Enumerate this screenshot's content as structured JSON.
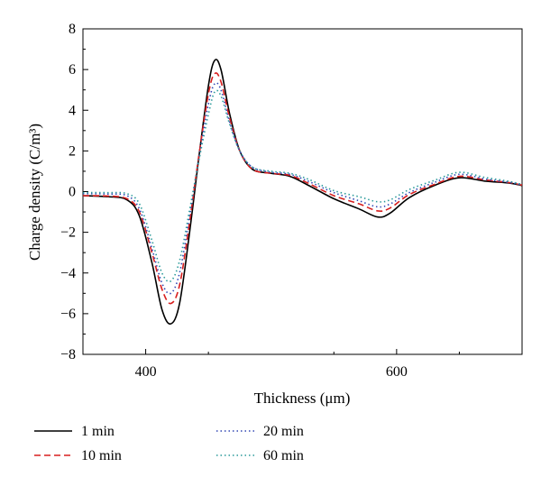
{
  "chart_data": {
    "type": "line",
    "title": "",
    "xlabel": "Thickness (μm)",
    "ylabel": "Charge density (C/m³)",
    "xlim": [
      350,
      700
    ],
    "ylim": [
      -8,
      8
    ],
    "xticks": [
      400,
      600
    ],
    "yticks": [
      -8,
      -6,
      -4,
      -2,
      0,
      2,
      4,
      6,
      8
    ],
    "legend_position": "bottom",
    "grid": false,
    "series": [
      {
        "name": "1 min",
        "color": "#000000",
        "dash": "solid",
        "points": [
          [
            350,
            -0.2
          ],
          [
            370,
            -0.25
          ],
          [
            385,
            -0.4
          ],
          [
            395,
            -1.2
          ],
          [
            405,
            -3.5
          ],
          [
            413,
            -5.8
          ],
          [
            420,
            -6.5
          ],
          [
            427,
            -5.5
          ],
          [
            435,
            -2.0
          ],
          [
            442,
            1.5
          ],
          [
            450,
            5.2
          ],
          [
            455,
            6.45
          ],
          [
            460,
            6.0
          ],
          [
            467,
            3.8
          ],
          [
            475,
            2.0
          ],
          [
            485,
            1.1
          ],
          [
            500,
            0.9
          ],
          [
            515,
            0.75
          ],
          [
            530,
            0.3
          ],
          [
            550,
            -0.35
          ],
          [
            570,
            -0.85
          ],
          [
            585,
            -1.25
          ],
          [
            595,
            -1.05
          ],
          [
            610,
            -0.3
          ],
          [
            630,
            0.3
          ],
          [
            650,
            0.68
          ],
          [
            670,
            0.52
          ],
          [
            690,
            0.42
          ],
          [
            700,
            0.3
          ]
        ]
      },
      {
        "name": "10 min",
        "color": "#d81e1e",
        "dash": "dashed",
        "points": [
          [
            350,
            -0.2
          ],
          [
            370,
            -0.22
          ],
          [
            385,
            -0.35
          ],
          [
            395,
            -1.0
          ],
          [
            405,
            -3.0
          ],
          [
            413,
            -4.8
          ],
          [
            420,
            -5.5
          ],
          [
            427,
            -4.6
          ],
          [
            435,
            -1.5
          ],
          [
            442,
            1.6
          ],
          [
            450,
            4.8
          ],
          [
            455,
            5.8
          ],
          [
            460,
            5.4
          ],
          [
            467,
            3.6
          ],
          [
            475,
            2.0
          ],
          [
            485,
            1.1
          ],
          [
            500,
            0.9
          ],
          [
            515,
            0.8
          ],
          [
            530,
            0.4
          ],
          [
            550,
            -0.2
          ],
          [
            570,
            -0.6
          ],
          [
            585,
            -0.95
          ],
          [
            595,
            -0.8
          ],
          [
            610,
            -0.15
          ],
          [
            630,
            0.35
          ],
          [
            650,
            0.75
          ],
          [
            670,
            0.58
          ],
          [
            690,
            0.44
          ],
          [
            700,
            0.32
          ]
        ]
      },
      {
        "name": "20 min",
        "color": "#3046b4",
        "dash": "dotted",
        "points": [
          [
            350,
            -0.1
          ],
          [
            370,
            -0.12
          ],
          [
            385,
            -0.2
          ],
          [
            395,
            -0.85
          ],
          [
            405,
            -2.8
          ],
          [
            413,
            -4.5
          ],
          [
            420,
            -5.0
          ],
          [
            427,
            -4.0
          ],
          [
            435,
            -1.2
          ],
          [
            442,
            1.5
          ],
          [
            450,
            4.3
          ],
          [
            455,
            5.3
          ],
          [
            460,
            5.0
          ],
          [
            467,
            3.4
          ],
          [
            475,
            2.0
          ],
          [
            485,
            1.2
          ],
          [
            500,
            0.95
          ],
          [
            515,
            0.85
          ],
          [
            530,
            0.5
          ],
          [
            550,
            -0.05
          ],
          [
            570,
            -0.45
          ],
          [
            585,
            -0.75
          ],
          [
            595,
            -0.6
          ],
          [
            610,
            -0.05
          ],
          [
            630,
            0.45
          ],
          [
            650,
            0.85
          ],
          [
            670,
            0.62
          ],
          [
            690,
            0.45
          ],
          [
            700,
            0.32
          ]
        ]
      },
      {
        "name": "60 min",
        "color": "#2a9a9a",
        "dash": "dotted",
        "points": [
          [
            350,
            -0.05
          ],
          [
            370,
            -0.05
          ],
          [
            385,
            -0.1
          ],
          [
            395,
            -0.6
          ],
          [
            405,
            -2.4
          ],
          [
            413,
            -4.0
          ],
          [
            420,
            -4.4
          ],
          [
            427,
            -3.4
          ],
          [
            435,
            -0.9
          ],
          [
            442,
            1.4
          ],
          [
            450,
            3.8
          ],
          [
            455,
            4.9
          ],
          [
            460,
            4.7
          ],
          [
            467,
            3.3
          ],
          [
            475,
            2.0
          ],
          [
            485,
            1.2
          ],
          [
            500,
            1.0
          ],
          [
            515,
            0.9
          ],
          [
            530,
            0.6
          ],
          [
            550,
            0.05
          ],
          [
            570,
            -0.25
          ],
          [
            585,
            -0.5
          ],
          [
            595,
            -0.4
          ],
          [
            610,
            0.1
          ],
          [
            630,
            0.55
          ],
          [
            650,
            0.95
          ],
          [
            670,
            0.7
          ],
          [
            690,
            0.5
          ],
          [
            700,
            0.35
          ]
        ]
      }
    ]
  }
}
